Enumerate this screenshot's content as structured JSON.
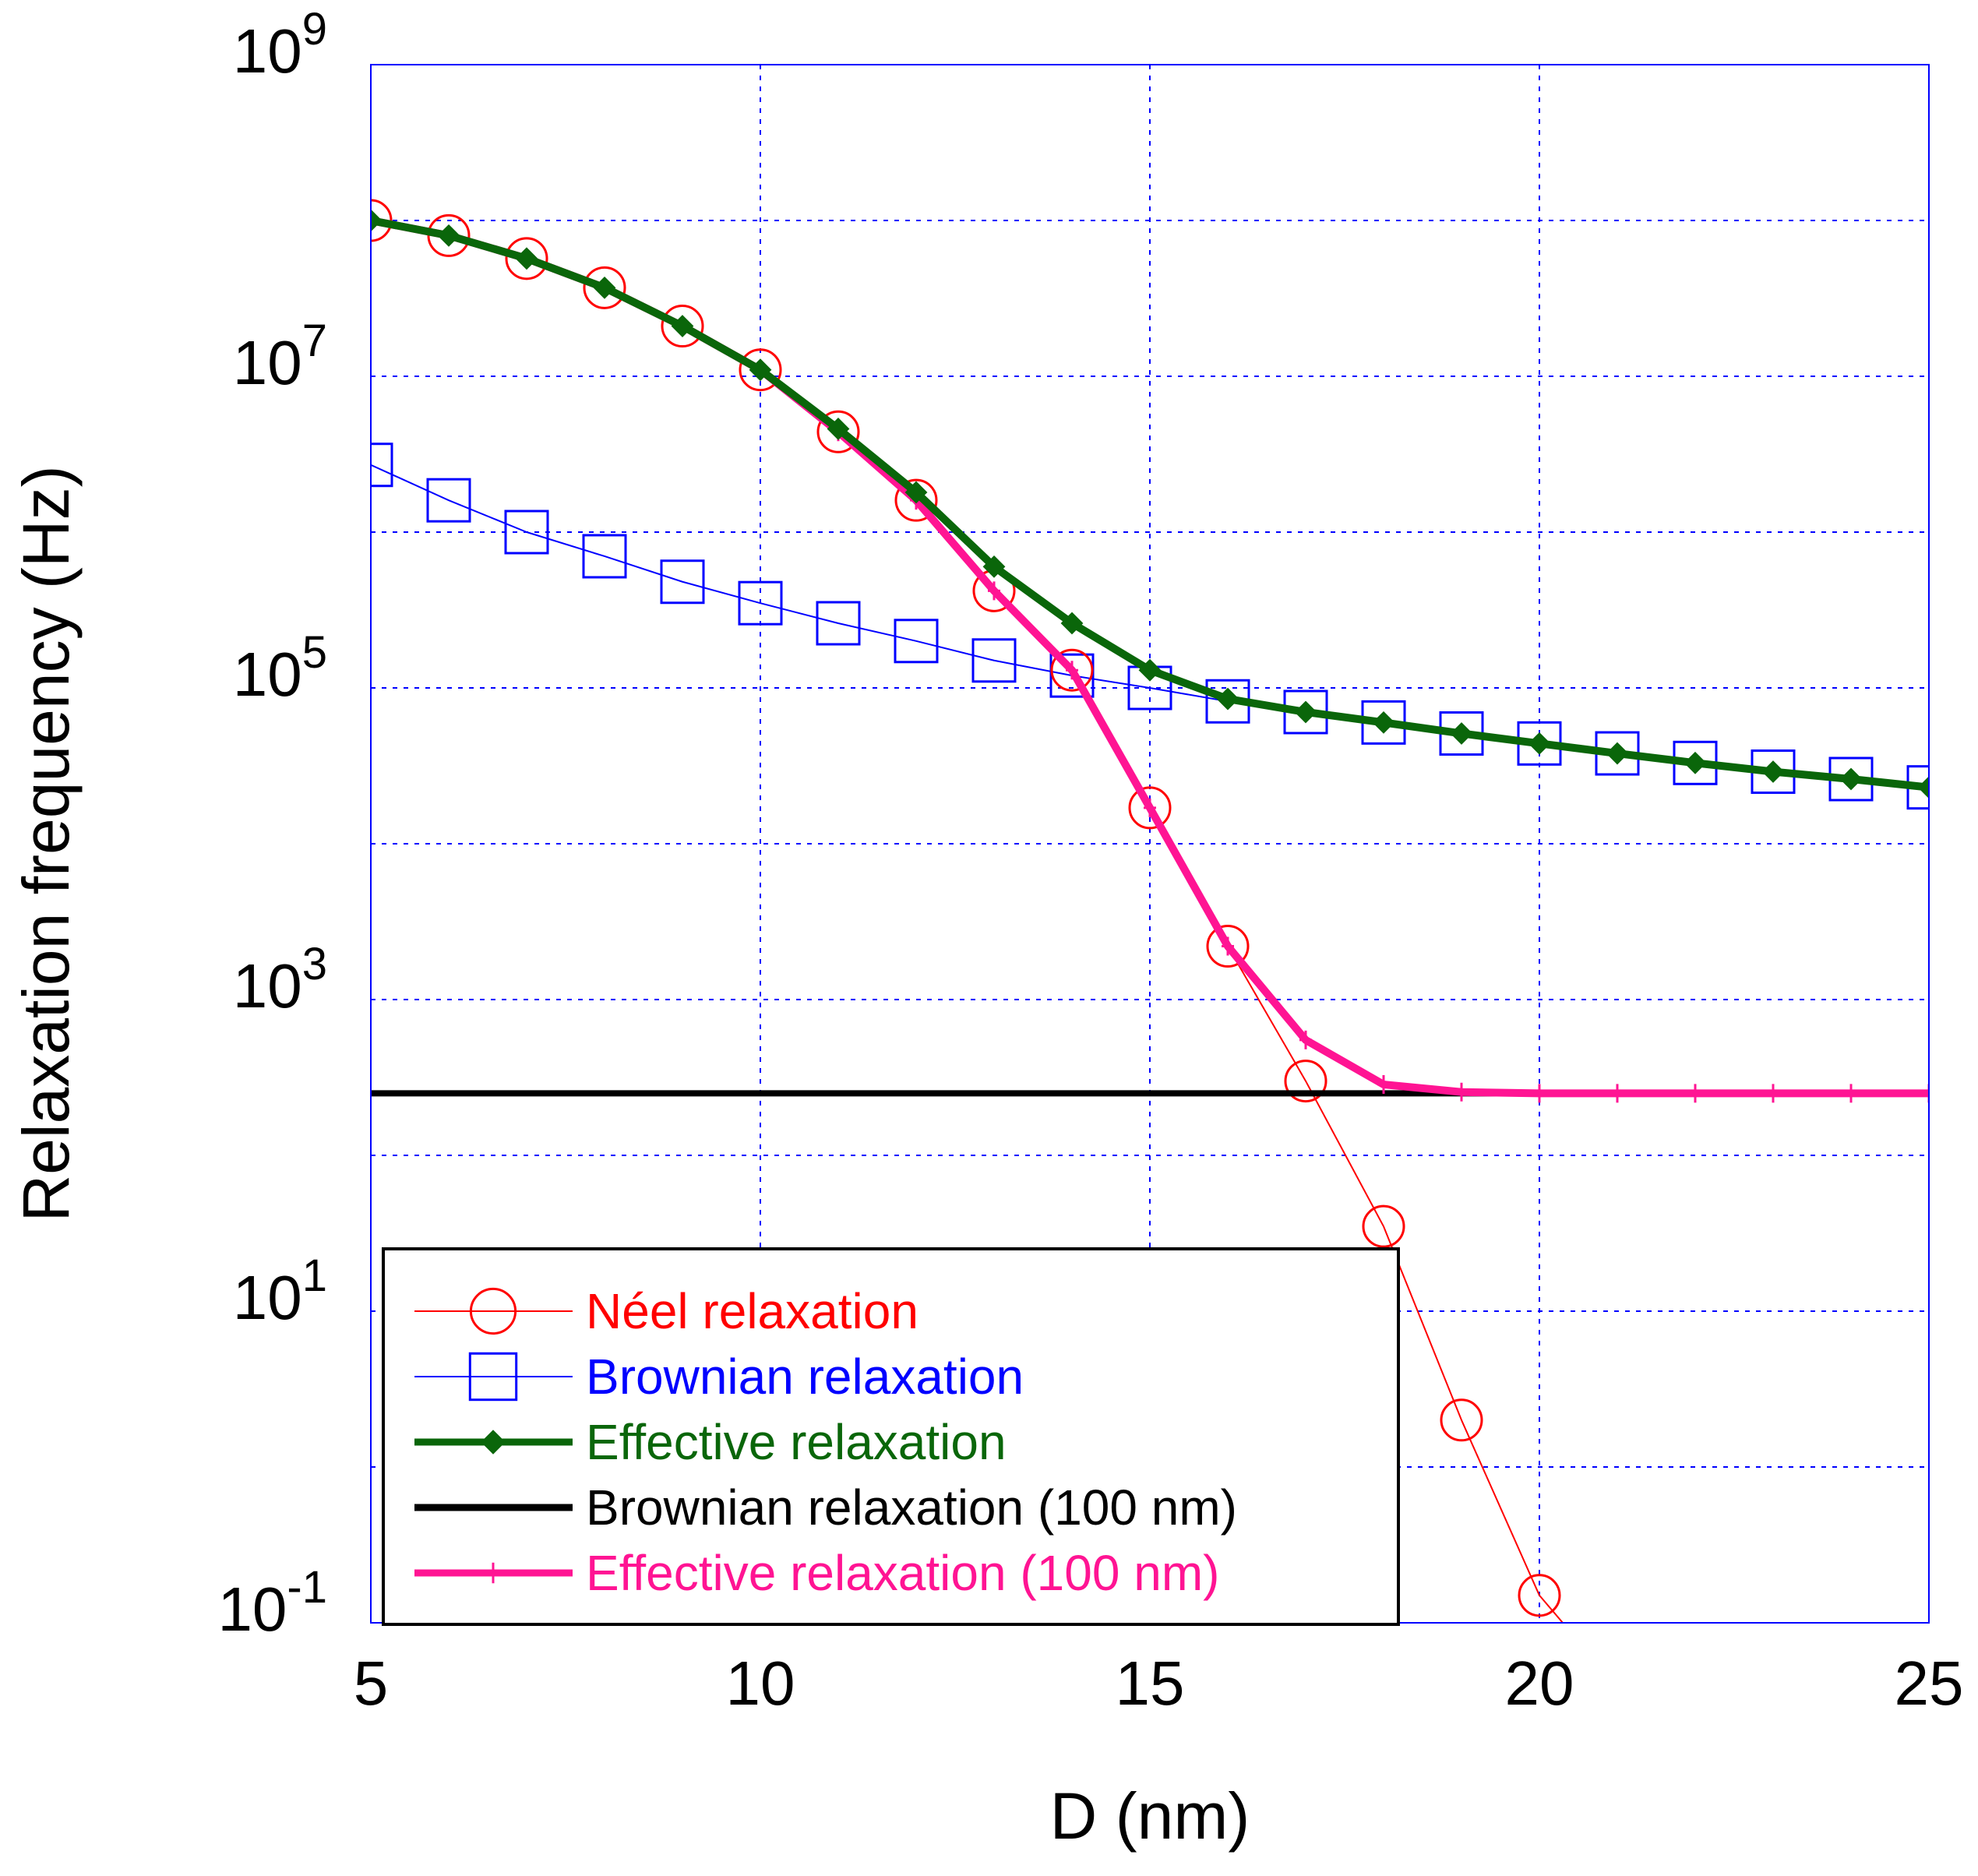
{
  "chart_data": {
    "type": "line",
    "title": "",
    "xlabel": "D (nm)",
    "ylabel": "Relaxation frequency (Hz)",
    "x_scale": "linear",
    "y_scale": "log",
    "xlim": [
      5,
      25
    ],
    "ylim": [
      0.1,
      1000000000
    ],
    "x_ticks": [
      5,
      10,
      15,
      20,
      25
    ],
    "y_ticks": [
      {
        "value": 1000000000,
        "base": "10",
        "exp": "9"
      },
      {
        "value": 10000000,
        "base": "10",
        "exp": "7"
      },
      {
        "value": 100000,
        "base": "10",
        "exp": "5"
      },
      {
        "value": 1000,
        "base": "10",
        "exp": "3"
      },
      {
        "value": 10,
        "base": "10",
        "exp": "1"
      },
      {
        "value": 0.1,
        "base": "10",
        "exp": "-1"
      }
    ],
    "grid": true,
    "legend_position": "bottom-left",
    "series": [
      {
        "name": "Néel relaxation",
        "color": "#ff0000",
        "marker": "circle",
        "line": "thin",
        "x": [
          5,
          6,
          7,
          8,
          9,
          10,
          11,
          12,
          13,
          14,
          15,
          16,
          17,
          18,
          19,
          20,
          20.3
        ],
        "y": [
          100000000,
          80000000,
          57000000,
          37000000,
          21000000,
          11000000,
          4400000,
          1600000,
          420000,
          130000,
          17000,
          2200,
          300,
          35,
          2,
          0.15,
          0.1
        ]
      },
      {
        "name": "Brownian relaxation",
        "color": "#0000ff",
        "marker": "square",
        "line": "thin",
        "x": [
          5,
          6,
          7,
          8,
          9,
          10,
          11,
          12,
          13,
          14,
          15,
          16,
          17,
          18,
          19,
          20,
          21,
          22,
          23,
          24,
          25
        ],
        "y": [
          2700000,
          1600000,
          1000000,
          700000,
          480000,
          350000,
          260000,
          200000,
          150000,
          120000,
          100000,
          82000,
          70000,
          60000,
          51000,
          44000,
          38000,
          33000,
          29000,
          26000,
          23000
        ]
      },
      {
        "name": "Effective relaxation",
        "color": "#0a660a",
        "marker": "diamond",
        "line": "thick",
        "x": [
          5,
          6,
          7,
          8,
          9,
          10,
          11,
          12,
          13,
          14,
          15,
          16,
          17,
          18,
          19,
          20,
          21,
          22,
          23,
          24,
          25
        ],
        "y": [
          100000000,
          80000000,
          57000000,
          37000000,
          21000000,
          11000000,
          4600000,
          1800000,
          600000,
          260000,
          130000,
          85000,
          70000,
          60000,
          51000,
          44000,
          38000,
          33000,
          29000,
          26000,
          23000
        ]
      },
      {
        "name": "Brownian relaxation (100 nm)",
        "color": "#000000",
        "marker": "none",
        "line": "thick",
        "x": [
          5,
          25
        ],
        "y": [
          250,
          250
        ]
      },
      {
        "name": "Effective relaxation (100 nm)",
        "color": "#ff1493",
        "marker": "plus",
        "line": "thick",
        "x": [
          5,
          6,
          7,
          8,
          9,
          10,
          11,
          12,
          13,
          14,
          15,
          16,
          17,
          18,
          19,
          20,
          21,
          22,
          23,
          24,
          25
        ],
        "y": [
          100000000,
          80000000,
          57000000,
          37000000,
          21000000,
          11000000,
          4400000,
          1600000,
          420000,
          130000,
          17000,
          2200,
          550,
          285,
          255,
          250,
          250,
          250,
          250,
          250,
          250
        ]
      }
    ]
  }
}
